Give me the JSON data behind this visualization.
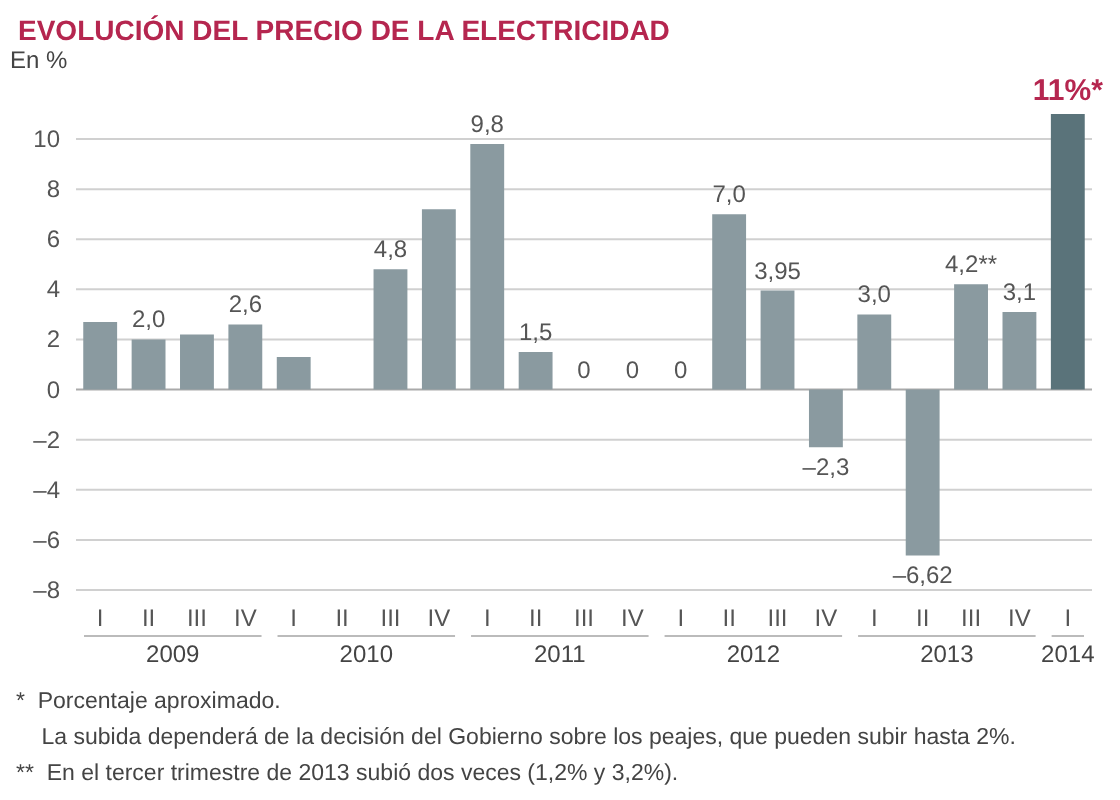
{
  "chart_data": {
    "type": "bar",
    "title": "EVOLUCIÓN DEL PRECIO DE LA ELECTRICIDAD",
    "ylabel": "En %",
    "categories": [
      "I",
      "II",
      "III",
      "IV",
      "I",
      "II",
      "III",
      "IV",
      "I",
      "II",
      "III",
      "IV",
      "I",
      "II",
      "III",
      "IV",
      "I",
      "II",
      "III",
      "IV",
      "I"
    ],
    "values": [
      2.7,
      2.0,
      2.2,
      2.6,
      1.3,
      null,
      4.8,
      7.2,
      9.8,
      1.5,
      0,
      0,
      0,
      7.0,
      3.95,
      -2.3,
      3.0,
      -6.62,
      4.2,
      3.1,
      11
    ],
    "colors": [
      "#8a9aa0",
      "#8a9aa0",
      "#8a9aa0",
      "#8a9aa0",
      "#8a9aa0",
      "#8a9aa0",
      "#8a9aa0",
      "#8a9aa0",
      "#8a9aa0",
      "#8a9aa0",
      "#8a9aa0",
      "#8a9aa0",
      "#8a9aa0",
      "#8a9aa0",
      "#8a9aa0",
      "#8a9aa0",
      "#8a9aa0",
      "#8a9aa0",
      "#8a9aa0",
      "#8a9aa0",
      "#5a737a"
    ],
    "value_labels": [
      null,
      "2,0",
      null,
      "2,6",
      null,
      null,
      "4,8",
      null,
      "9,8",
      "1,5",
      "0",
      "0",
      "0",
      "7,0",
      "3,95",
      "–2,3",
      "3,0",
      "–6,62",
      "4,2**",
      "3,1",
      "11%*"
    ],
    "ylim": [
      -8,
      11
    ],
    "yticks": [
      {
        "value": -8,
        "label": "–8"
      },
      {
        "value": -6,
        "label": "–6"
      },
      {
        "value": -4,
        "label": "–4"
      },
      {
        "value": -2,
        "label": "–2"
      },
      0,
      2,
      4,
      6,
      8,
      10
    ],
    "grid": "y",
    "annotations": [
      "2009",
      "2010",
      "2011",
      "2012",
      "2013",
      "2014",
      "*  Porcentaje aproximado.",
      "    La subida dependerá de la decisión del Gobierno sobre los peajes, que pueden subir hasta 2%.",
      "**  En el tercer trimestre de 2013 subió dos veces (1,2% y 3,2%)."
    ]
  }
}
